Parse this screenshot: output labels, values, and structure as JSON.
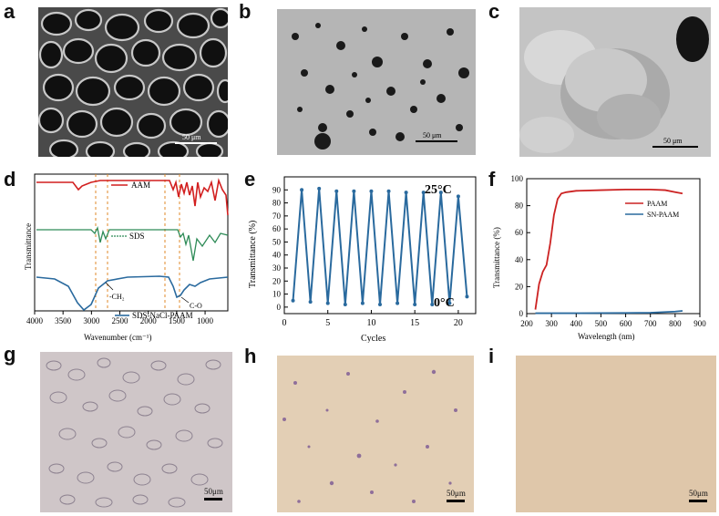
{
  "panel_labels": [
    "a",
    "b",
    "c",
    "d",
    "e",
    "f",
    "g",
    "h",
    "i"
  ],
  "sem": {
    "a_scale": "50 μm",
    "b_scale": "50 μm",
    "c_scale": "50 μm"
  },
  "micro": {
    "g_scale": "50μm",
    "h_scale": "50μm",
    "i_scale": "50μm"
  },
  "chart_data": [
    {
      "type": "line",
      "panel": "d",
      "xlabel": "Wavenumber (cm⁻¹)",
      "ylabel": "Transmittance",
      "x_ticks": [
        4000,
        3500,
        3000,
        2500,
        2000,
        1500,
        1000
      ],
      "xlim": [
        4000,
        600
      ],
      "series": [
        {
          "name": "AAM",
          "color": "#d21f1f"
        },
        {
          "name": "SDS",
          "color": "#2e8b57"
        },
        {
          "name": "SDS-NaCl-PAAM",
          "color": "#2a6a9e"
        }
      ],
      "annotations": [
        "-CH₂",
        "C-O"
      ]
    },
    {
      "type": "line",
      "panel": "e",
      "xlabel": "Cycles",
      "ylabel": "Transmittance (%)",
      "xlim": [
        0,
        22
      ],
      "ylim": [
        -5,
        100
      ],
      "x_ticks": [
        0,
        5,
        10,
        15,
        20
      ],
      "y_ticks": [
        0,
        10,
        20,
        30,
        40,
        50,
        60,
        70,
        80,
        90
      ],
      "annotations": [
        "25°C",
        "0°C"
      ],
      "series": [
        {
          "color": "#2a6a9e",
          "x": [
            1,
            2,
            3,
            4,
            5,
            6,
            7,
            8,
            9,
            10,
            11,
            12,
            13,
            14,
            15,
            16,
            17,
            18,
            19,
            20,
            21
          ],
          "y": [
            5,
            90,
            4,
            91,
            3,
            89,
            2,
            89,
            3,
            89,
            2,
            89,
            3,
            88,
            2,
            88,
            2,
            88,
            3,
            85,
            8
          ]
        }
      ]
    },
    {
      "type": "line",
      "panel": "f",
      "xlabel": "Wavelength (nm)",
      "ylabel": "Transmittance (%)",
      "xlim": [
        200,
        900
      ],
      "ylim": [
        0,
        100
      ],
      "x_ticks": [
        200,
        300,
        400,
        500,
        600,
        700,
        800,
        900
      ],
      "y_ticks": [
        0,
        20,
        40,
        60,
        80,
        100
      ],
      "legend": "top-right",
      "series": [
        {
          "name": "PAAM",
          "color": "#cc2222",
          "x": [
            235,
            250,
            265,
            280,
            295,
            310,
            325,
            340,
            360,
            400,
            500,
            600,
            700,
            760,
            800,
            830
          ],
          "y": [
            3,
            22,
            31,
            36,
            52,
            73,
            85,
            89,
            90,
            91,
            91.5,
            92,
            92,
            91.5,
            90,
            89
          ]
        },
        {
          "name": "SN-PAAM",
          "color": "#2a6a9e",
          "x": [
            235,
            400,
            600,
            700,
            800,
            830
          ],
          "y": [
            0.3,
            0.3,
            0.5,
            0.7,
            1.5,
            2
          ]
        }
      ]
    }
  ]
}
